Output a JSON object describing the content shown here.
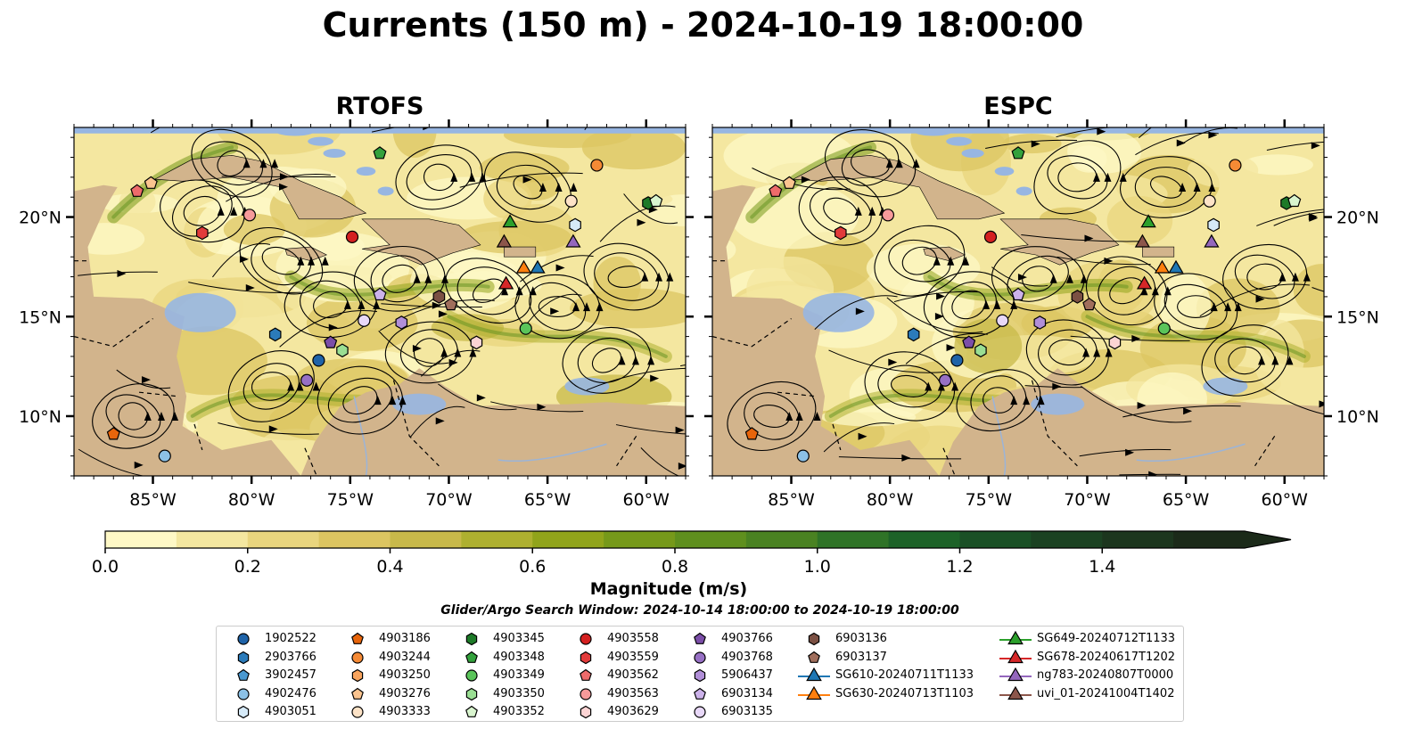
{
  "title": "Currents (150 m) - 2024-10-19 18:00:00",
  "panels": [
    {
      "title": "RTOFS"
    },
    {
      "title": "ESPC"
    }
  ],
  "axes": {
    "x_ticks": [
      "85°W",
      "80°W",
      "75°W",
      "70°W",
      "65°W",
      "60°W"
    ],
    "x_tick_values": [
      -85,
      -80,
      -75,
      -70,
      -65,
      -60
    ],
    "y_ticks": [
      "20°N",
      "15°N",
      "10°N"
    ],
    "y_tick_values": [
      20,
      15,
      10
    ],
    "lon_range": [
      -89,
      -58
    ],
    "lat_range": [
      7,
      24.5
    ]
  },
  "colorbar": {
    "label": "Magnitude (m/s)",
    "range": [
      0,
      1.6
    ],
    "ticks": [
      "0.0",
      "0.2",
      "0.4",
      "0.6",
      "0.8",
      "1.0",
      "1.2",
      "1.4"
    ],
    "tick_values": [
      0,
      0.2,
      0.4,
      0.6,
      0.8,
      1.0,
      1.2,
      1.4
    ],
    "extend": "max",
    "colors": [
      "#fef8c6",
      "#f4e7a0",
      "#e9d57e",
      "#dcc561",
      "#c8b94a",
      "#aeb030",
      "#91a41b",
      "#76991a",
      "#5f8f1e",
      "#4a8222",
      "#2f7327",
      "#1d6228",
      "#1a5026",
      "#1b4222",
      "#1c361e",
      "#1b2a19"
    ]
  },
  "search_window": "Glider/Argo Search Window: 2024-10-14 18:00:00 to 2024-10-19 18:00:00",
  "colors": {
    "land": "#d2b48c",
    "ocean_land_mask": "#97b6e2",
    "border_dashes": "#000000"
  },
  "legend": {
    "columns": [
      [
        {
          "label": "1902522",
          "marker": "circle",
          "color": "#1f63a8"
        },
        {
          "label": "2903766",
          "marker": "hexagon",
          "color": "#2b7bba"
        },
        {
          "label": "3902457",
          "marker": "pentagon",
          "color": "#4a98d0"
        },
        {
          "label": "4902476",
          "marker": "circle",
          "color": "#8cc1e6"
        },
        {
          "label": "4903051",
          "marker": "hexagon",
          "color": "#d6eaf8"
        }
      ],
      [
        {
          "label": "4903186",
          "marker": "pentagon",
          "color": "#e8650b"
        },
        {
          "label": "4903244",
          "marker": "circle",
          "color": "#f58a35"
        },
        {
          "label": "4903250",
          "marker": "hexagon",
          "color": "#f8a45e"
        },
        {
          "label": "4903276",
          "marker": "pentagon",
          "color": "#fbc48f"
        },
        {
          "label": "4903333",
          "marker": "circle",
          "color": "#fde3c7"
        }
      ],
      [
        {
          "label": "4903345",
          "marker": "hexagon",
          "color": "#1d7a28"
        },
        {
          "label": "4903348",
          "marker": "pentagon",
          "color": "#33a13c"
        },
        {
          "label": "4903349",
          "marker": "circle",
          "color": "#5ac45a"
        },
        {
          "label": "4903350",
          "marker": "hexagon",
          "color": "#9ade93"
        },
        {
          "label": "4903352",
          "marker": "pentagon",
          "color": "#d9f5cf"
        }
      ],
      [
        {
          "label": "4903558",
          "marker": "circle",
          "color": "#d42020"
        },
        {
          "label": "4903559",
          "marker": "hexagon",
          "color": "#e23b3b"
        },
        {
          "label": "4903562",
          "marker": "pentagon",
          "color": "#ee6b6b"
        },
        {
          "label": "4903563",
          "marker": "circle",
          "color": "#f69a9a"
        },
        {
          "label": "4903629",
          "marker": "hexagon",
          "color": "#fcd4d4"
        }
      ],
      [
        {
          "label": "4903766",
          "marker": "pentagon",
          "color": "#7b4ea8"
        },
        {
          "label": "4903768",
          "marker": "circle",
          "color": "#9770c4"
        },
        {
          "label": "5906437",
          "marker": "hexagon",
          "color": "#b18fd8"
        },
        {
          "label": "6903134",
          "marker": "pentagon",
          "color": "#ccb2ea"
        },
        {
          "label": "6903135",
          "marker": "circle",
          "color": "#e8d8f8"
        }
      ],
      [
        {
          "label": "6903136",
          "marker": "hexagon",
          "color": "#7b5043"
        },
        {
          "label": "6903137",
          "marker": "pentagon",
          "color": "#a06e5c"
        },
        {
          "label": "SG610-20240711T1133",
          "marker": "triangle-line",
          "color": "#1f77b4"
        },
        {
          "label": "SG630-20240713T1103",
          "marker": "triangle-line",
          "color": "#ff7f0e"
        }
      ],
      [
        {
          "label": "SG649-20240712T1133",
          "marker": "triangle-line",
          "color": "#2ca02c"
        },
        {
          "label": "SG678-20240617T1202",
          "marker": "triangle-line",
          "color": "#d62728"
        },
        {
          "label": "ng783-20240807T0000",
          "marker": "triangle-line",
          "color": "#9467bd"
        },
        {
          "label": "uvi_01-20241004T1402",
          "marker": "triangle-line",
          "color": "#8c564b"
        }
      ]
    ]
  },
  "markers_rtofs": [
    {
      "id": "4903186",
      "lon": -87.0,
      "lat": 9.1
    },
    {
      "id": "4902476",
      "lon": -84.4,
      "lat": 8.0
    },
    {
      "id": "4903562",
      "lon": -85.8,
      "lat": 21.3
    },
    {
      "id": "4903276",
      "lon": -85.1,
      "lat": 21.7
    },
    {
      "id": "4903559",
      "lon": -82.5,
      "lat": 19.2
    },
    {
      "id": "4903563",
      "lon": -80.1,
      "lat": 20.1
    },
    {
      "id": "2903766",
      "lon": -78.8,
      "lat": 14.1
    },
    {
      "id": "1902522",
      "lon": -76.6,
      "lat": 12.8
    },
    {
      "id": "4903768",
      "lon": -77.2,
      "lat": 11.8
    },
    {
      "id": "4903766",
      "lon": -76.0,
      "lat": 13.7
    },
    {
      "id": "4903350",
      "lon": -75.4,
      "lat": 13.3
    },
    {
      "id": "6903135",
      "lon": -74.3,
      "lat": 14.8
    },
    {
      "id": "6903134",
      "lon": -73.5,
      "lat": 16.1
    },
    {
      "id": "5906437",
      "lon": -72.4,
      "lat": 14.7
    },
    {
      "id": "4903558",
      "lon": -74.9,
      "lat": 19.0
    },
    {
      "id": "4903348",
      "lon": -73.5,
      "lat": 23.2
    },
    {
      "id": "6903136",
      "lon": -70.5,
      "lat": 16.0
    },
    {
      "id": "6903137",
      "lon": -69.9,
      "lat": 15.6
    },
    {
      "id": "4903629",
      "lon": -68.6,
      "lat": 13.7
    },
    {
      "id": "4903349",
      "lon": -66.1,
      "lat": 14.4
    },
    {
      "id": "4903244",
      "lon": -62.5,
      "lat": 22.6
    },
    {
      "id": "4903333",
      "lon": -63.8,
      "lat": 20.8
    },
    {
      "id": "4903051",
      "lon": -63.6,
      "lat": 19.6
    },
    {
      "id": "4903345",
      "lon": -59.9,
      "lat": 20.7
    },
    {
      "id": "4903352",
      "lon": -59.5,
      "lat": 20.8
    },
    {
      "id": "SG649-20240712T1133",
      "lon": -66.9,
      "lat": 19.7
    },
    {
      "id": "uvi_01-20241004T1402",
      "lon": -67.2,
      "lat": 18.7
    },
    {
      "id": "ng783-20240807T0000",
      "lon": -63.7,
      "lat": 18.7
    },
    {
      "id": "SG630-20240713T1103",
      "lon": -66.2,
      "lat": 17.4
    },
    {
      "id": "SG610-20240711T1133",
      "lon": -65.5,
      "lat": 17.4
    },
    {
      "id": "SG678-20240617T1202",
      "lon": -67.1,
      "lat": 16.6
    }
  ],
  "markers_espc": [
    {
      "id": "4903186",
      "lon": -87.0,
      "lat": 9.1
    },
    {
      "id": "4902476",
      "lon": -84.4,
      "lat": 8.0
    },
    {
      "id": "4903562",
      "lon": -85.8,
      "lat": 21.3
    },
    {
      "id": "4903276",
      "lon": -85.1,
      "lat": 21.7
    },
    {
      "id": "4903559",
      "lon": -82.5,
      "lat": 19.2
    },
    {
      "id": "4903563",
      "lon": -80.1,
      "lat": 20.1
    },
    {
      "id": "2903766",
      "lon": -78.8,
      "lat": 14.1
    },
    {
      "id": "1902522",
      "lon": -76.6,
      "lat": 12.8
    },
    {
      "id": "4903768",
      "lon": -77.2,
      "lat": 11.8
    },
    {
      "id": "4903766",
      "lon": -76.0,
      "lat": 13.7
    },
    {
      "id": "4903350",
      "lon": -75.4,
      "lat": 13.3
    },
    {
      "id": "6903135",
      "lon": -74.3,
      "lat": 14.8
    },
    {
      "id": "6903134",
      "lon": -73.5,
      "lat": 16.1
    },
    {
      "id": "5906437",
      "lon": -72.4,
      "lat": 14.7
    },
    {
      "id": "4903558",
      "lon": -74.9,
      "lat": 19.0
    },
    {
      "id": "4903348",
      "lon": -73.5,
      "lat": 23.2
    },
    {
      "id": "6903136",
      "lon": -70.5,
      "lat": 16.0
    },
    {
      "id": "6903137",
      "lon": -69.9,
      "lat": 15.6
    },
    {
      "id": "4903629",
      "lon": -68.6,
      "lat": 13.7
    },
    {
      "id": "4903349",
      "lon": -66.1,
      "lat": 14.4
    },
    {
      "id": "4903244",
      "lon": -62.5,
      "lat": 22.6
    },
    {
      "id": "4903333",
      "lon": -63.8,
      "lat": 20.8
    },
    {
      "id": "4903051",
      "lon": -63.6,
      "lat": 19.6
    },
    {
      "id": "4903345",
      "lon": -59.9,
      "lat": 20.7
    },
    {
      "id": "4903352",
      "lon": -59.5,
      "lat": 20.8
    },
    {
      "id": "SG649-20240712T1133",
      "lon": -66.9,
      "lat": 19.7
    },
    {
      "id": "uvi_01-20241004T1402",
      "lon": -67.2,
      "lat": 18.7
    },
    {
      "id": "ng783-20240807T0000",
      "lon": -63.7,
      "lat": 18.7
    },
    {
      "id": "SG630-20240713T1103",
      "lon": -66.2,
      "lat": 17.4
    },
    {
      "id": "SG610-20240711T1133",
      "lon": -65.5,
      "lat": 17.4
    },
    {
      "id": "SG678-20240617T1202",
      "lon": -67.1,
      "lat": 16.6
    }
  ]
}
